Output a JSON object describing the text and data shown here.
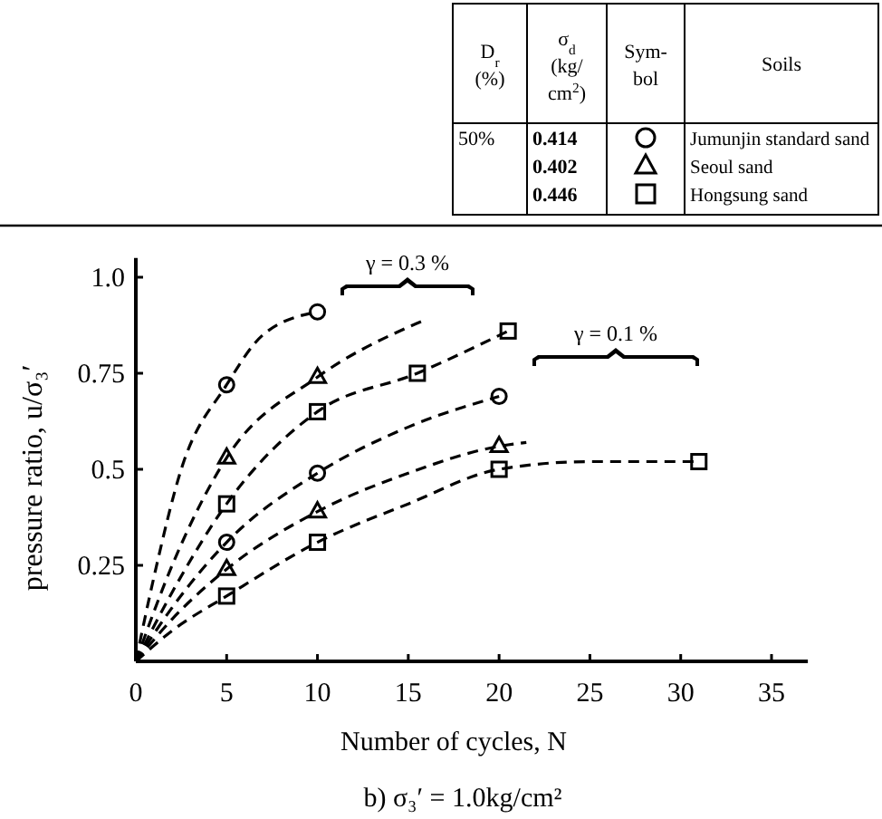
{
  "chart_data": {
    "type": "scatter",
    "title": "b)  σ₃′ = 1.0kg/cm²",
    "xlabel": "Number of cycles, N",
    "ylabel": "pressure ratio, u/σ₃′",
    "xlim": [
      0,
      37
    ],
    "ylim": [
      0,
      1.05
    ],
    "xticks": [
      0,
      5,
      10,
      15,
      20,
      25,
      30,
      35
    ],
    "yticks": [
      0.25,
      0.5,
      0.75,
      {
        "value": 1,
        "label": "1.0"
      }
    ],
    "grid": false,
    "legend": "top right",
    "annotations": [
      "D$_{r}$ (%)",
      "σ$_{d}$ (kg/ cm$^{2}$)",
      "Sym- bol",
      "Soils",
      "50%",
      "0.414",
      "0.402",
      "0.446",
      "γ = 0.3 %",
      "γ = 0.1 %"
    ],
    "series": [
      {
        "name": "Jumunjin standard sand",
        "color": "#000000",
        "marker": "circle",
        "x": [
          5,
          10,
          5,
          10,
          20
        ],
        "values": [
          0.72,
          0.91,
          0.31,
          0.49,
          0.69
        ]
      },
      {
        "name": "Seoul sand",
        "color": "#000000",
        "marker": "triangle",
        "x": [
          5,
          10,
          5,
          10,
          20
        ],
        "values": [
          0.53,
          0.74,
          0.24,
          0.39,
          0.56
        ]
      },
      {
        "name": "Hongsung sand",
        "color": "#000000",
        "marker": "square",
        "x": [
          5,
          10,
          15.5,
          20.5,
          5,
          10,
          20,
          31
        ],
        "values": [
          0.41,
          0.65,
          0.75,
          0.86,
          0.17,
          0.31,
          0.5,
          0.52
        ]
      },
      {
        "type": "line",
        "color": "#000000",
        "line_style": "dashed",
        "marker": "none",
        "x": [
          0,
          1,
          2.5,
          5,
          7,
          10
        ],
        "values": [
          0,
          0.22,
          0.5,
          0.72,
          0.85,
          0.91
        ]
      },
      {
        "type": "line",
        "color": "#000000",
        "line_style": "dashed",
        "marker": "none",
        "x": [
          0,
          2,
          5,
          10,
          15,
          16
        ],
        "values": [
          0,
          0.25,
          0.53,
          0.74,
          0.87,
          0.89
        ]
      },
      {
        "type": "line",
        "color": "#000000",
        "line_style": "dashed",
        "marker": "none",
        "x": [
          0,
          2,
          5,
          10,
          15.5,
          20.5
        ],
        "values": [
          0,
          0.18,
          0.41,
          0.65,
          0.75,
          0.86
        ]
      },
      {
        "type": "line",
        "color": "#000000",
        "line_style": "dashed",
        "marker": "none",
        "x": [
          0,
          2,
          5,
          10,
          15,
          20
        ],
        "values": [
          0,
          0.14,
          0.31,
          0.49,
          0.61,
          0.69
        ]
      },
      {
        "type": "line",
        "color": "#000000",
        "line_style": "dashed",
        "marker": "none",
        "x": [
          0,
          2,
          5,
          10,
          15,
          20,
          21.5
        ],
        "values": [
          0,
          0.11,
          0.24,
          0.39,
          0.49,
          0.56,
          0.57
        ]
      },
      {
        "type": "line",
        "color": "#000000",
        "line_style": "dashed",
        "marker": "none",
        "x": [
          0,
          2,
          5,
          10,
          15,
          20,
          25,
          31
        ],
        "values": [
          0,
          0.08,
          0.17,
          0.31,
          0.41,
          0.5,
          0.52,
          0.52
        ]
      }
    ]
  }
}
